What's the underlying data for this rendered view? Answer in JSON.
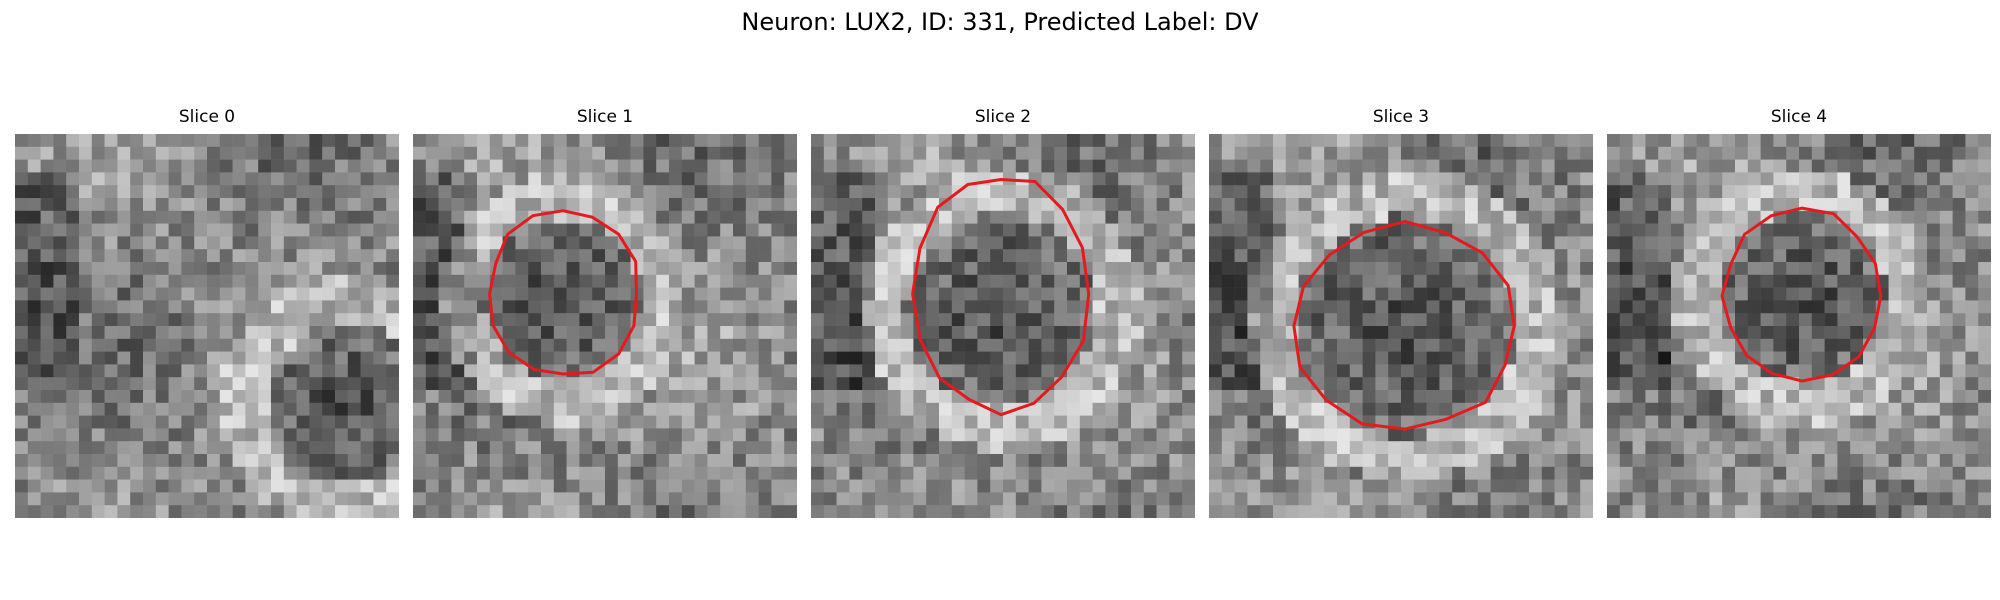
{
  "figure": {
    "title": "Neuron: LUX2, ID: 331, Predicted Label: DV",
    "contour_color": "#e41a1c",
    "panels": [
      {
        "title": "Slice 0",
        "seed": 11,
        "dark_spot": "bottom-right"
      },
      {
        "title": "Slice 1",
        "seed": 23,
        "dark_spot": "center"
      },
      {
        "title": "Slice 2",
        "seed": 37,
        "dark_spot": "center"
      },
      {
        "title": "Slice 3",
        "seed": 51,
        "dark_spot": "center"
      },
      {
        "title": "Slice 4",
        "seed": 67,
        "dark_spot": "center"
      }
    ]
  }
}
